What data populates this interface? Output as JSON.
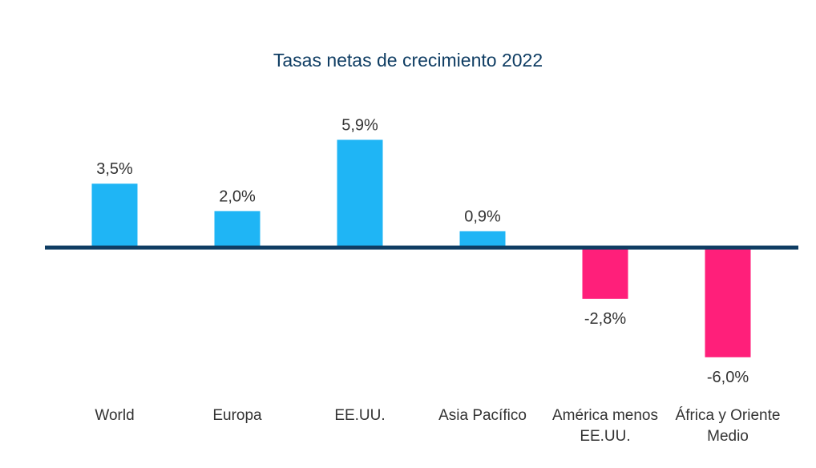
{
  "chart_data": {
    "type": "bar",
    "title": "Tasas netas de crecimiento 2022",
    "categories": [
      "World",
      "Europa",
      "EE.UU.",
      "Asia Pacífico",
      "América menos\nEE.UU.",
      "África y Oriente\nMedio"
    ],
    "values": [
      3.5,
      2.0,
      5.9,
      0.9,
      -2.8,
      -6.0
    ],
    "data_labels": [
      "3,5%",
      "2,0%",
      "5,9%",
      "0,9%",
      "-2,8%",
      "-6,0%"
    ],
    "xlabel": "",
    "ylabel": "",
    "ylim": [
      -6.0,
      5.9
    ],
    "grid": false,
    "legend": "none",
    "colors": {
      "positive": "#1fb5f5",
      "negative": "#ff1f7a",
      "axis": "#0f3d63",
      "title": "#0f3d63",
      "text": "#333333"
    }
  }
}
